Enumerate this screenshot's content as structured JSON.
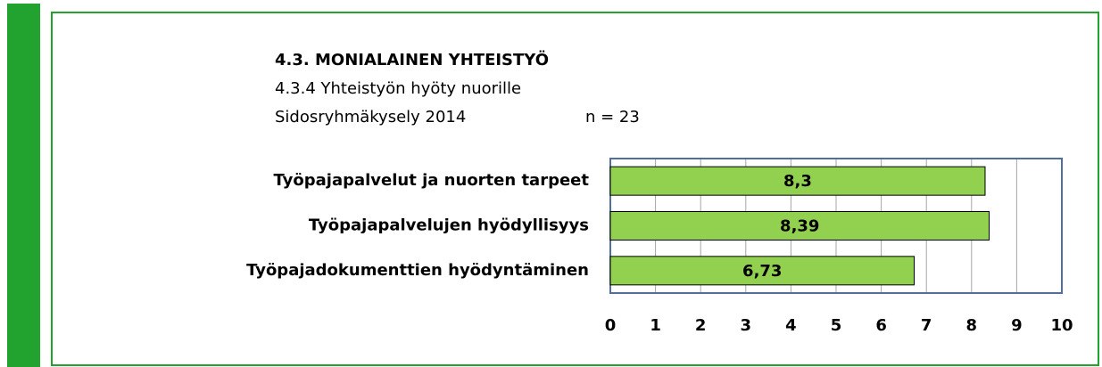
{
  "chart_data": {
    "type": "barh",
    "title": "4.3. MONIALAINEN YHTEISTYÖ",
    "subtitle": "4.3.4 Yhteistyön hyöty nuorille",
    "survey": "Sidosryhmäkysely  2014",
    "annotation": "n = 23",
    "categories": [
      "Työpajapalvelut ja nuorten tarpeet",
      "Työpajapalvelujen hyödyllisyys",
      "Työpajadokumenttien hyödyntäminen"
    ],
    "values": [
      8.3,
      8.39,
      6.73
    ],
    "value_labels": [
      "8,3",
      "8,39",
      "6,73"
    ],
    "color": "#92d050",
    "xlim": [
      0,
      10
    ],
    "xticks": [
      0,
      1,
      2,
      3,
      4,
      5,
      6,
      7,
      8,
      9,
      10
    ],
    "grid": true
  }
}
